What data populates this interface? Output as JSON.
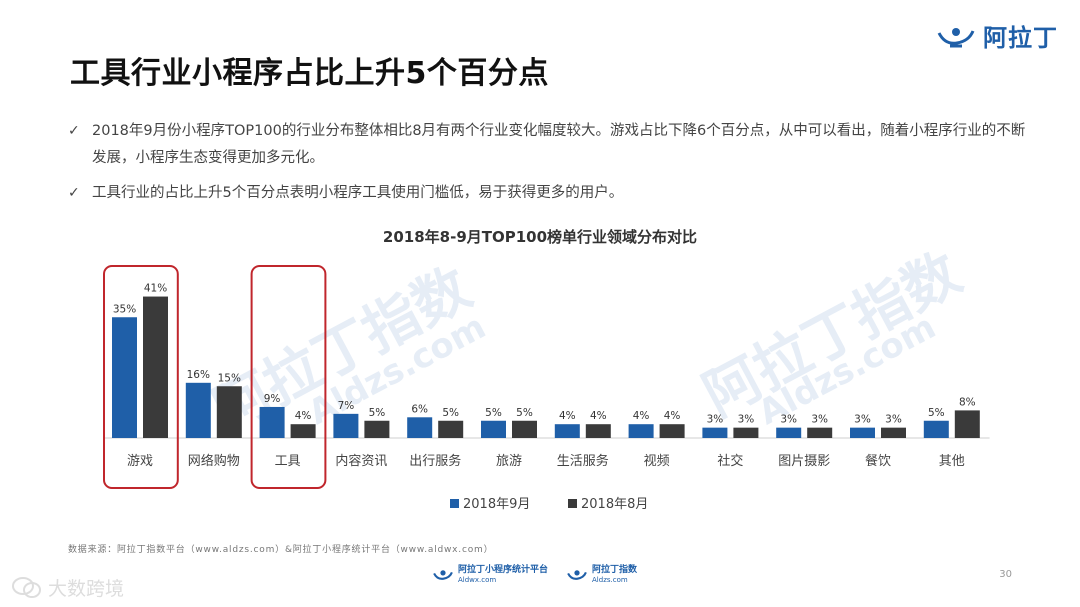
{
  "brand": {
    "name": "阿拉丁"
  },
  "page_title": "工具行业小程序占比上升5个百分点",
  "bullets": [
    "2018年9月份小程序TOP100的行业分布整体相比8月有两个行业变化幅度较大。游戏占比下降6个百分点，从中可以看出，随着小程序行业的不断发展，小程序生态变得更加多元化。",
    "工具行业的占比上升5个百分点表明小程序工具使用门槛低，易于获得更多的用户。"
  ],
  "chart_data": {
    "type": "bar",
    "title": "2018年8-9月TOP100榜单行业领域分布对比",
    "categories": [
      "游戏",
      "网络购物",
      "工具",
      "内容资讯",
      "出行服务",
      "旅游",
      "生活服务",
      "视频",
      "社交",
      "图片摄影",
      "餐饮",
      "其他"
    ],
    "series": [
      {
        "name": "2018年9月",
        "values": [
          35,
          16,
          9,
          7,
          6,
          5,
          4,
          4,
          3,
          3,
          3,
          5
        ],
        "labels": [
          "35%",
          "16%",
          "9%",
          "7%",
          "6%",
          "5%",
          "4%",
          "4%",
          "3%",
          "3%",
          "3%",
          "5%"
        ],
        "color": "#1f5fa8"
      },
      {
        "name": "2018年8月",
        "values": [
          41,
          15,
          4,
          5,
          5,
          5,
          4,
          4,
          3,
          3,
          3,
          8
        ],
        "labels": [
          "41%",
          "15%",
          "4%",
          "5%",
          "5%",
          "5%",
          "4%",
          "4%",
          "3%",
          "3%",
          "3%",
          "8%"
        ],
        "color": "#3a3a3a"
      }
    ],
    "highlighted": [
      "游戏",
      "工具"
    ],
    "highlight_color": "#c0262c",
    "legend_position": "bottom"
  },
  "watermark": {
    "brand": "阿拉丁指数",
    "domain": "Aldzs.com"
  },
  "footer": {
    "source": "数据来源：阿拉丁指数平台（www.aldzs.com）&阿拉丁小程序统计平台（www.aldwx.com）",
    "logos": [
      {
        "main": "阿拉丁小程序统计平台",
        "sub": "Aldwx.com"
      },
      {
        "main": "阿拉丁指数",
        "sub": "Aldzs.com"
      }
    ],
    "page_number": "30",
    "corner_mark": "大数跨境"
  }
}
